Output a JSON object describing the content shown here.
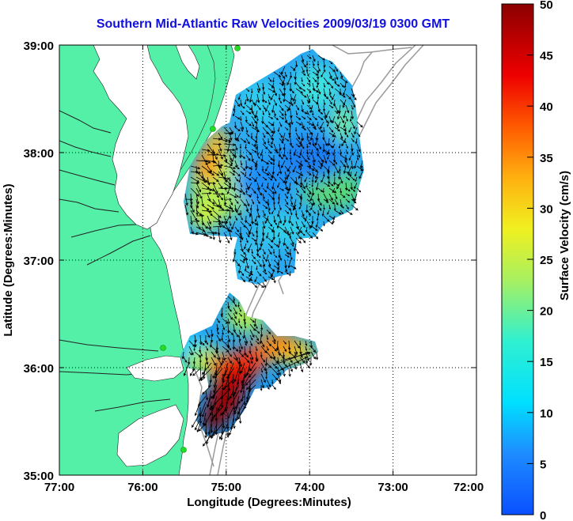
{
  "title": "Southern Mid-Atlantic Raw Velocities 2009/03/19 0300 GMT",
  "chart_data": {
    "type": "heatmap",
    "title": "Southern Mid-Atlantic Raw Velocities 2009/03/19 0300 GMT",
    "xlabel": "Longitude (Degrees:Minutes)",
    "ylabel": "Latitude (Degrees:Minutes)",
    "x_ticks": [
      "77:00",
      "76:00",
      "75:00",
      "74:00",
      "73:00",
      "72:00"
    ],
    "x_tick_values": [
      -77,
      -76,
      -75,
      -74,
      -73,
      -72
    ],
    "y_ticks": [
      "39:00",
      "38:00",
      "37:00",
      "36:00",
      "35:00"
    ],
    "y_tick_values": [
      39,
      38,
      37,
      36,
      35
    ],
    "xlim": [
      -77,
      -72
    ],
    "ylim": [
      35,
      39
    ],
    "grid": true,
    "colorbar": {
      "label": "Surface Velocity (cm/s)",
      "ticks": [
        "50",
        "45",
        "40",
        "35",
        "30",
        "25",
        "20",
        "15",
        "10",
        "5",
        "0"
      ],
      "tick_values": [
        50,
        45,
        40,
        35,
        30,
        25,
        20,
        15,
        10,
        5,
        0
      ],
      "range": [
        0,
        50
      ]
    },
    "colors": {
      "land": "#55f0a8",
      "ocean": "#ffffff",
      "bathymetry": "#999999",
      "station": "#22dd22",
      "arrow": "#000000"
    }
  }
}
